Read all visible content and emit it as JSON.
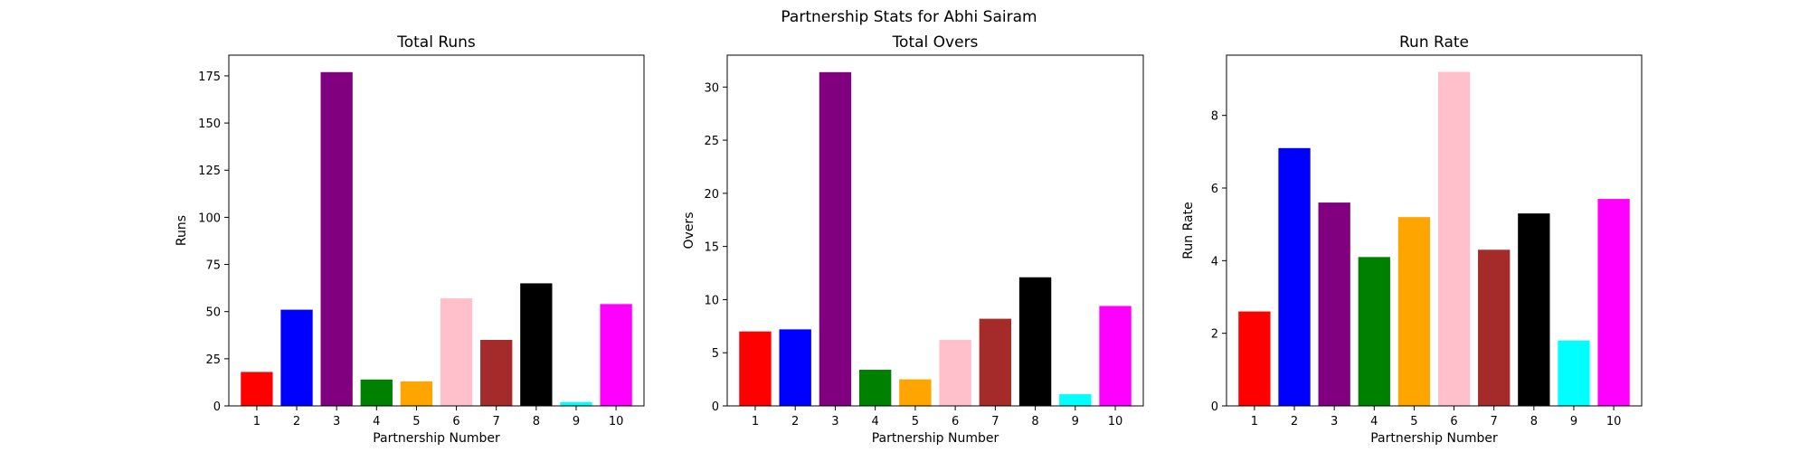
{
  "figure": {
    "suptitle": "Partnership Stats for Abhi Sairam"
  },
  "colors": [
    "#ff0000",
    "#0000ff",
    "#800080",
    "#008000",
    "#ffa500",
    "#ffc0cb",
    "#a52a2a",
    "#000000",
    "#00ffff",
    "#ff00ff"
  ],
  "chart_data": [
    {
      "type": "bar",
      "title": "Total Runs",
      "xlabel": "Partnership Number",
      "ylabel": "Runs",
      "categories": [
        "1",
        "2",
        "3",
        "4",
        "5",
        "6",
        "7",
        "8",
        "9",
        "10"
      ],
      "values": [
        18,
        51,
        177,
        14,
        13,
        57,
        35,
        65,
        2,
        54
      ],
      "ylim": [
        0,
        186
      ],
      "yticks": [
        0,
        25,
        50,
        75,
        100,
        125,
        150,
        175
      ],
      "grid": false
    },
    {
      "type": "bar",
      "title": "Total Overs",
      "xlabel": "Partnership Number",
      "ylabel": "Overs",
      "categories": [
        "1",
        "2",
        "3",
        "4",
        "5",
        "6",
        "7",
        "8",
        "9",
        "10"
      ],
      "values": [
        7.0,
        7.2,
        31.4,
        3.4,
        2.5,
        6.2,
        8.2,
        12.1,
        1.1,
        9.4
      ],
      "ylim": [
        0,
        33
      ],
      "yticks": [
        0,
        5,
        10,
        15,
        20,
        25,
        30
      ],
      "grid": false
    },
    {
      "type": "bar",
      "title": "Run Rate",
      "xlabel": "Partnership Number",
      "ylabel": "Run Rate",
      "categories": [
        "1",
        "2",
        "3",
        "4",
        "5",
        "6",
        "7",
        "8",
        "9",
        "10"
      ],
      "values": [
        2.6,
        7.1,
        5.6,
        4.1,
        5.2,
        9.2,
        4.3,
        5.3,
        1.8,
        5.7
      ],
      "ylim": [
        0,
        9.66
      ],
      "yticks": [
        0,
        2,
        4,
        6,
        8
      ],
      "grid": false
    }
  ]
}
